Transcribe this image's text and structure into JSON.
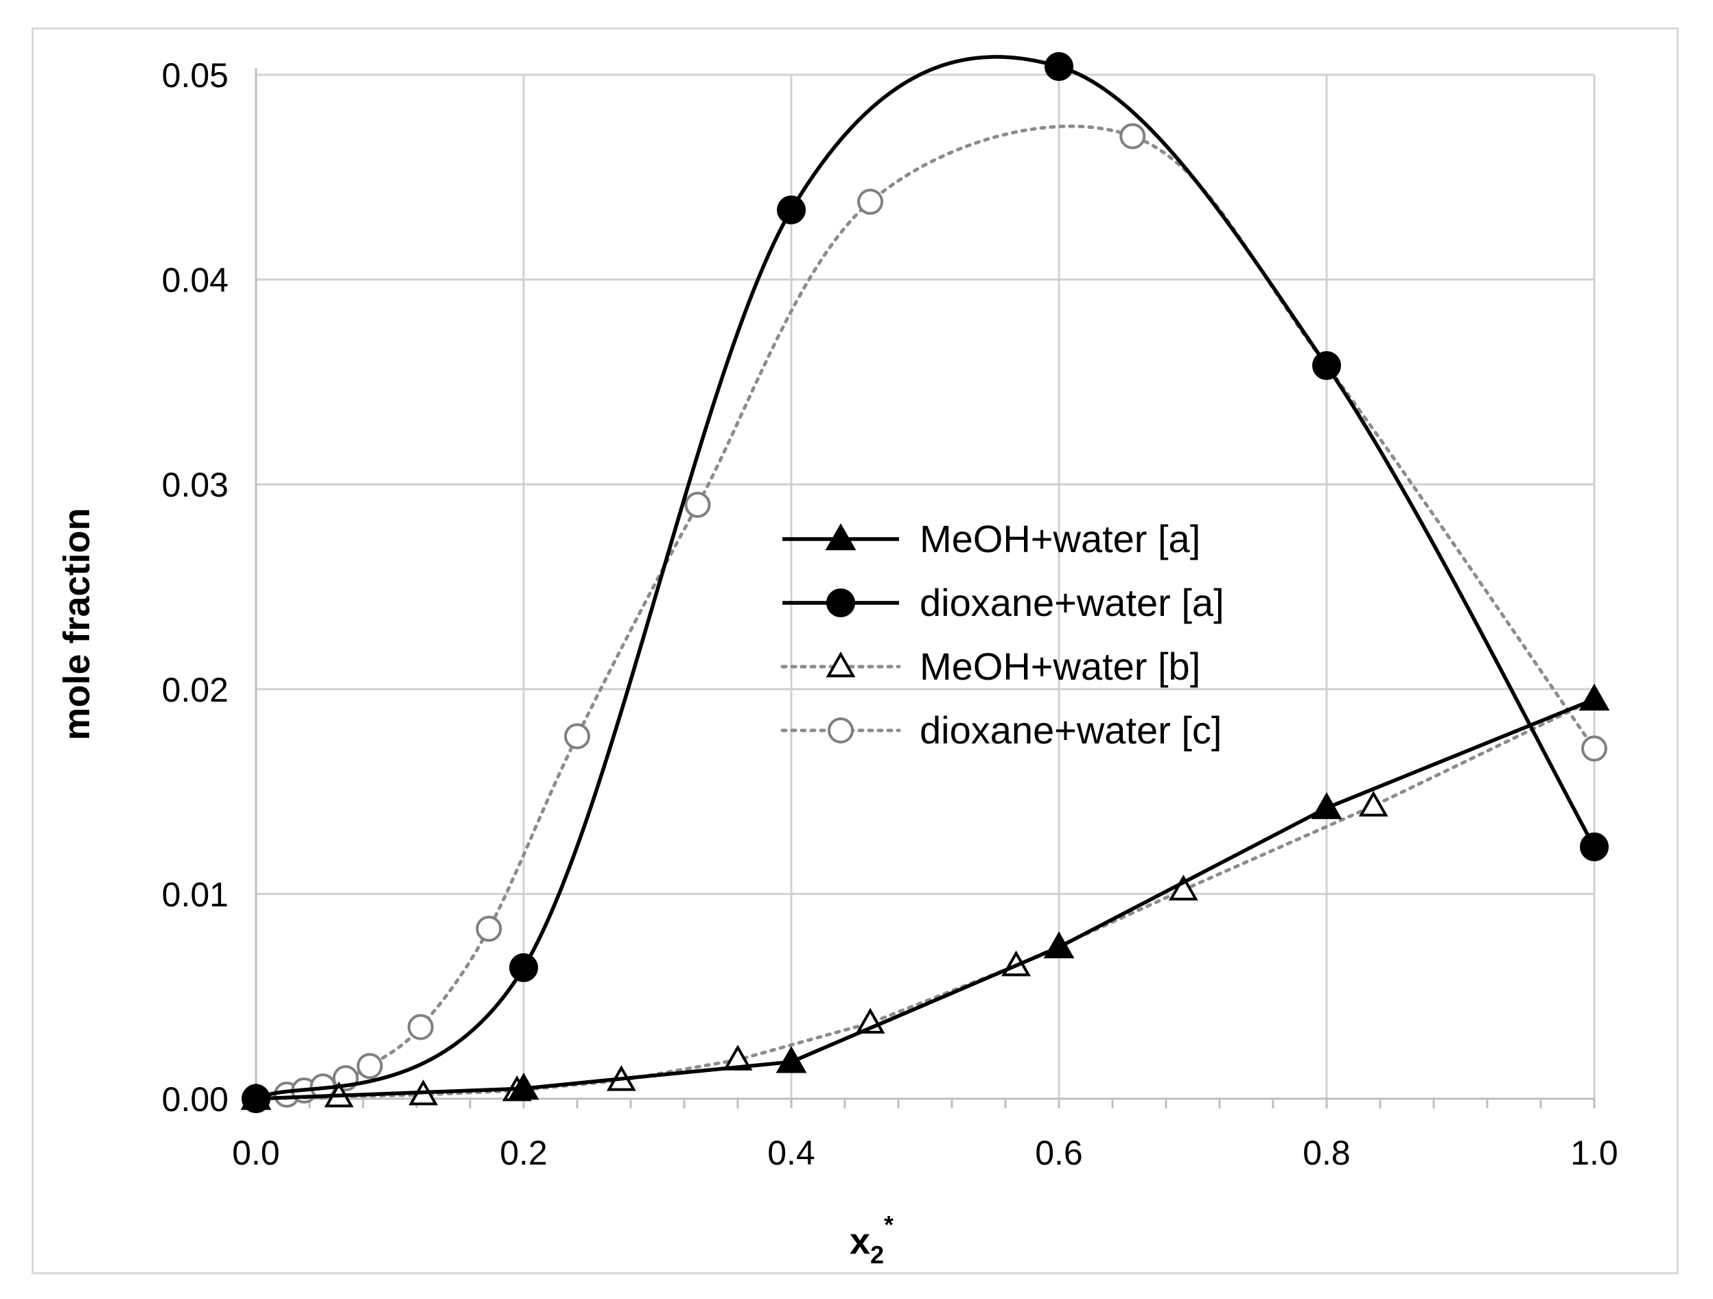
{
  "chart_data": {
    "type": "line",
    "xlabel": "x",
    "xlabel_sub": "2",
    "xlabel_sup": "*",
    "ylabel": "mole fraction",
    "xlim": [
      0.0,
      1.0
    ],
    "ylim": [
      0.0,
      0.05
    ],
    "xticks": [
      "0.0",
      "0.2",
      "0.4",
      "0.6",
      "0.8",
      "1.0"
    ],
    "yticks": [
      "0.00",
      "0.01",
      "0.02",
      "0.03",
      "0.04",
      "0.05"
    ],
    "grid": true,
    "legend_position": "center-right",
    "series": [
      {
        "name": "MeOH+water [a]",
        "line": "solid",
        "color": "#000000",
        "marker": "filled-triangle",
        "x": [
          0.0,
          0.2,
          0.4,
          0.6,
          0.8,
          1.0
        ],
        "y": [
          0.0,
          0.0005,
          0.0018,
          0.0074,
          0.0142,
          0.0195
        ]
      },
      {
        "name": "dioxane+water [a]",
        "line": "solid",
        "color": "#000000",
        "marker": "filled-circle",
        "x": [
          0.0,
          0.2,
          0.4,
          0.6,
          0.8,
          1.0
        ],
        "y": [
          0.0,
          0.0064,
          0.0434,
          0.0504,
          0.0358,
          0.0123
        ]
      },
      {
        "name": "MeOH+water [b]",
        "line": "dotted",
        "color": "#808080",
        "marker": "open-triangle",
        "x": [
          0.0,
          0.062,
          0.125,
          0.195,
          0.273,
          0.36,
          0.459,
          0.568,
          0.693,
          0.835,
          1.0
        ],
        "y": [
          0.0,
          0.0001,
          0.0002,
          0.0004,
          0.0009,
          0.0019,
          0.0037,
          0.0065,
          0.0102,
          0.0143,
          0.0195
        ]
      },
      {
        "name": "dioxane+water [c]",
        "line": "dotted",
        "color": "#808080",
        "marker": "open-circle",
        "x": [
          0.0,
          0.023,
          0.036,
          0.05,
          0.067,
          0.085,
          0.123,
          0.174,
          0.24,
          0.33,
          0.459,
          0.655,
          0.8,
          1.0
        ],
        "y": [
          0.0001,
          0.0002,
          0.0004,
          0.0006,
          0.001,
          0.0016,
          0.0035,
          0.0083,
          0.0177,
          0.029,
          0.0438,
          0.047,
          0.0358,
          0.0171
        ]
      }
    ]
  }
}
